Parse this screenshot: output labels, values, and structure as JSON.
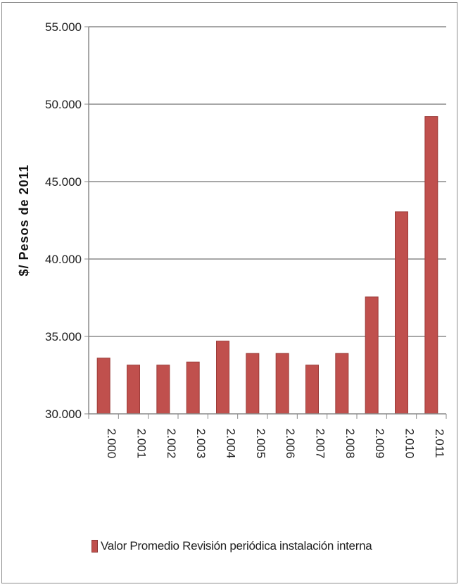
{
  "chart_data": {
    "type": "bar",
    "categories": [
      "2.000",
      "2.001",
      "2.002",
      "2.003",
      "2.004",
      "2.005",
      "2.006",
      "2.007",
      "2.008",
      "2.009",
      "2.010",
      "2.011"
    ],
    "series": [
      {
        "name": "Valor Promedio Revisión periódica instalación interna",
        "values": [
          33600,
          33150,
          33150,
          33350,
          34700,
          33900,
          33900,
          33150,
          33900,
          37550,
          43050,
          49200
        ],
        "color": "#c0504d"
      }
    ],
    "ylabel": "$/ Pesos de 2011",
    "xlabel": "",
    "ylim": [
      30000,
      55000
    ],
    "yticks": [
      "30.000",
      "35.000",
      "40.000",
      "45.000",
      "50.000",
      "55.000"
    ],
    "ytick_values": [
      30000,
      35000,
      40000,
      45000,
      50000,
      55000
    ],
    "grid": true,
    "legend_position": "bottom"
  }
}
